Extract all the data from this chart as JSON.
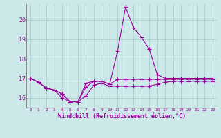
{
  "xlabel": "Windchill (Refroidissement éolien,°C)",
  "hours": [
    0,
    1,
    2,
    3,
    4,
    5,
    6,
    7,
    8,
    9,
    10,
    11,
    12,
    13,
    14,
    15,
    16,
    17,
    18,
    19,
    20,
    21,
    22,
    23
  ],
  "line1": [
    17.0,
    16.8,
    16.5,
    16.4,
    16.2,
    15.8,
    15.8,
    16.1,
    16.65,
    16.75,
    16.6,
    16.6,
    16.6,
    16.6,
    16.6,
    16.6,
    16.7,
    16.8,
    16.85,
    16.85,
    16.85,
    16.85,
    16.85,
    16.85
  ],
  "line2": [
    17.0,
    16.8,
    16.5,
    16.4,
    16.2,
    15.8,
    15.8,
    16.55,
    16.85,
    16.85,
    16.7,
    16.95,
    16.95,
    16.95,
    16.95,
    16.95,
    16.95,
    16.95,
    16.95,
    16.95,
    16.95,
    16.95,
    16.95,
    16.95
  ],
  "line3": [
    17.0,
    16.8,
    16.5,
    16.4,
    16.0,
    15.8,
    15.8,
    16.75,
    16.85,
    16.85,
    16.7,
    18.4,
    20.65,
    19.6,
    19.1,
    18.5,
    17.2,
    17.0,
    17.0,
    17.0,
    17.0,
    17.0,
    17.0,
    17.0
  ],
  "line_color": "#990099",
  "bg_color": "#cce8e8",
  "grid_color": "#aacece",
  "axis_color": "#990099",
  "text_color": "#990099",
  "ylim": [
    15.5,
    20.8
  ],
  "yticks": [
    16,
    17,
    18,
    19,
    20
  ],
  "marker": "+",
  "markersize": 4,
  "linewidth": 0.8
}
